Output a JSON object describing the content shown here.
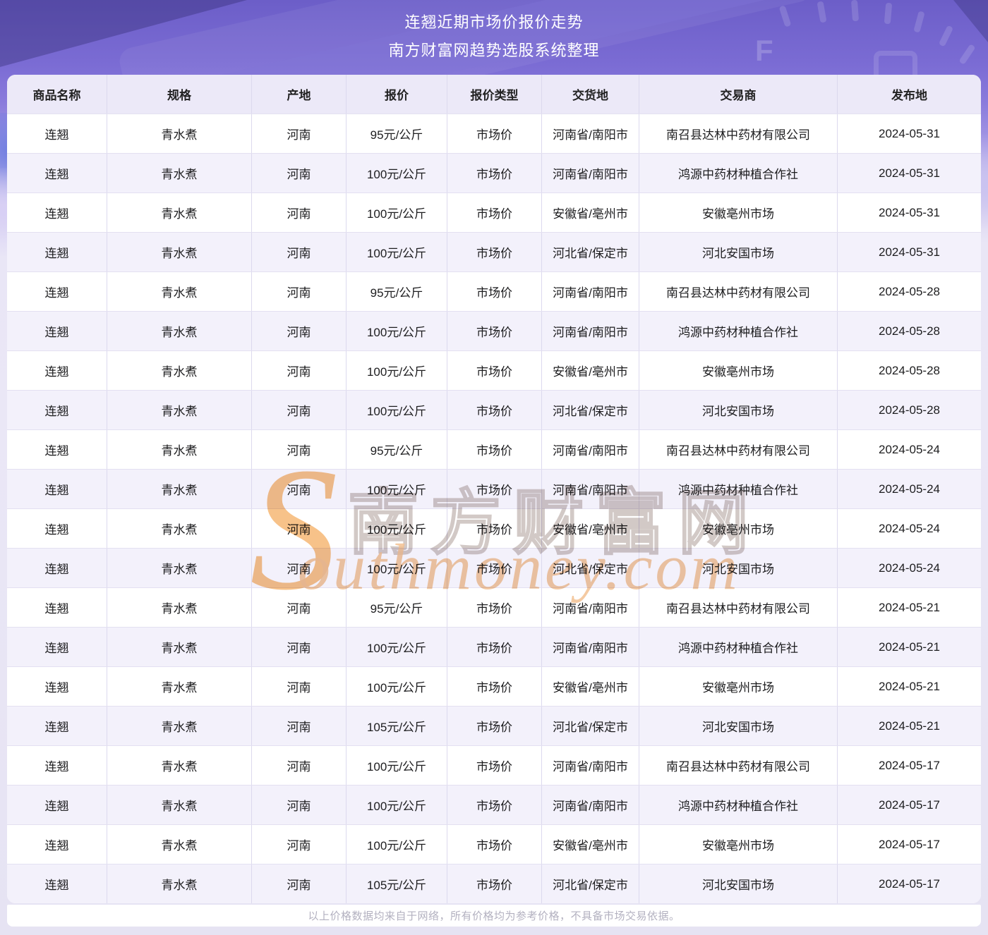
{
  "header": {
    "title_line1": "连翘近期市场价报价走势",
    "title_line2": "南方财富网趋势选股系统整理"
  },
  "table": {
    "columns": [
      "商品名称",
      "规格",
      "产地",
      "报价",
      "报价类型",
      "交货地",
      "交易商",
      "发布地"
    ],
    "rows": [
      [
        "连翘",
        "青水煮",
        "河南",
        "95元/公斤",
        "市场价",
        "河南省/南阳市",
        "南召县达林中药材有限公司",
        "2024-05-31"
      ],
      [
        "连翘",
        "青水煮",
        "河南",
        "100元/公斤",
        "市场价",
        "河南省/南阳市",
        "鸿源中药材种植合作社",
        "2024-05-31"
      ],
      [
        "连翘",
        "青水煮",
        "河南",
        "100元/公斤",
        "市场价",
        "安徽省/亳州市",
        "安徽亳州市场",
        "2024-05-31"
      ],
      [
        "连翘",
        "青水煮",
        "河南",
        "100元/公斤",
        "市场价",
        "河北省/保定市",
        "河北安国市场",
        "2024-05-31"
      ],
      [
        "连翘",
        "青水煮",
        "河南",
        "95元/公斤",
        "市场价",
        "河南省/南阳市",
        "南召县达林中药材有限公司",
        "2024-05-28"
      ],
      [
        "连翘",
        "青水煮",
        "河南",
        "100元/公斤",
        "市场价",
        "河南省/南阳市",
        "鸿源中药材种植合作社",
        "2024-05-28"
      ],
      [
        "连翘",
        "青水煮",
        "河南",
        "100元/公斤",
        "市场价",
        "安徽省/亳州市",
        "安徽亳州市场",
        "2024-05-28"
      ],
      [
        "连翘",
        "青水煮",
        "河南",
        "100元/公斤",
        "市场价",
        "河北省/保定市",
        "河北安国市场",
        "2024-05-28"
      ],
      [
        "连翘",
        "青水煮",
        "河南",
        "95元/公斤",
        "市场价",
        "河南省/南阳市",
        "南召县达林中药材有限公司",
        "2024-05-24"
      ],
      [
        "连翘",
        "青水煮",
        "河南",
        "100元/公斤",
        "市场价",
        "河南省/南阳市",
        "鸿源中药材种植合作社",
        "2024-05-24"
      ],
      [
        "连翘",
        "青水煮",
        "河南",
        "100元/公斤",
        "市场价",
        "安徽省/亳州市",
        "安徽亳州市场",
        "2024-05-24"
      ],
      [
        "连翘",
        "青水煮",
        "河南",
        "100元/公斤",
        "市场价",
        "河北省/保定市",
        "河北安国市场",
        "2024-05-24"
      ],
      [
        "连翘",
        "青水煮",
        "河南",
        "95元/公斤",
        "市场价",
        "河南省/南阳市",
        "南召县达林中药材有限公司",
        "2024-05-21"
      ],
      [
        "连翘",
        "青水煮",
        "河南",
        "100元/公斤",
        "市场价",
        "河南省/南阳市",
        "鸿源中药材种植合作社",
        "2024-05-21"
      ],
      [
        "连翘",
        "青水煮",
        "河南",
        "100元/公斤",
        "市场价",
        "安徽省/亳州市",
        "安徽亳州市场",
        "2024-05-21"
      ],
      [
        "连翘",
        "青水煮",
        "河南",
        "105元/公斤",
        "市场价",
        "河北省/保定市",
        "河北安国市场",
        "2024-05-21"
      ],
      [
        "连翘",
        "青水煮",
        "河南",
        "100元/公斤",
        "市场价",
        "河南省/南阳市",
        "南召县达林中药材有限公司",
        "2024-05-17"
      ],
      [
        "连翘",
        "青水煮",
        "河南",
        "100元/公斤",
        "市场价",
        "河南省/南阳市",
        "鸿源中药材种植合作社",
        "2024-05-17"
      ],
      [
        "连翘",
        "青水煮",
        "河南",
        "100元/公斤",
        "市场价",
        "安徽省/亳州市",
        "安徽亳州市场",
        "2024-05-17"
      ],
      [
        "连翘",
        "青水煮",
        "河南",
        "105元/公斤",
        "市场价",
        "河北省/保定市",
        "河北安国市场",
        "2024-05-17"
      ]
    ]
  },
  "watermark": {
    "initial": "S",
    "cn_text": "南方财富网",
    "en_text": "outhmoney.com"
  },
  "footer": {
    "disclaimer": "以上价格数据均来自于网络，所有价格均为参考价格，不具备市场交易依据。"
  },
  "colors": {
    "page_top_purple": "#6c5ec8",
    "page_bottom_lavender": "#e6e3f3",
    "table_header_bg": "#ece9f8",
    "row_bg": "#ffffff",
    "row_alt_bg": "#f3f1fb",
    "cell_border": "#dcd9ee",
    "cell_text": "#1d1d1f",
    "title_text": "#ffffff",
    "footer_text": "#b3b1c0",
    "watermark_orange": "#f5ae62"
  }
}
